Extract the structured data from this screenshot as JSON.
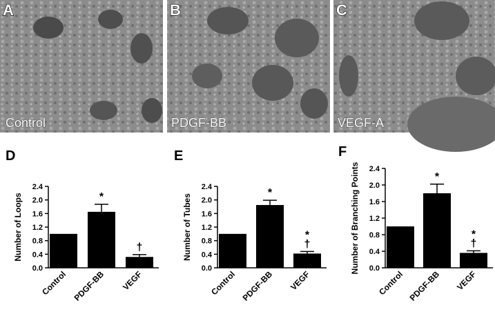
{
  "panels": [
    {
      "label": "A",
      "caption": "Control"
    },
    {
      "label": "B",
      "caption": "PDGF-BB"
    },
    {
      "label": "C",
      "caption": "VEGF-A"
    }
  ],
  "chart_data": [
    {
      "type": "bar",
      "label": "D",
      "y_label": "Number of Loops",
      "categories": [
        "Control",
        "PDGF-BB",
        "VEGF"
      ],
      "values": [
        1.0,
        1.65,
        0.32
      ],
      "errors": [
        0,
        0.22,
        0.07
      ],
      "annotations": [
        [],
        [
          "*"
        ],
        [
          "†"
        ]
      ],
      "color": "#000000",
      "ylim": [
        0,
        2.4
      ],
      "yticks": [
        {
          "value": 0,
          "label": "0.0"
        },
        0.4,
        0.8,
        1.2,
        1.6,
        {
          "value": 2,
          "label": "2.0"
        },
        2.4
      ]
    },
    {
      "type": "bar",
      "label": "E",
      "y_label": "Number of Tubes",
      "categories": [
        "Control",
        "PDGF-BB",
        "VEGF"
      ],
      "values": [
        1.0,
        1.85,
        0.42
      ],
      "errors": [
        0,
        0.14,
        0.06
      ],
      "annotations": [
        [],
        [
          "*"
        ],
        [
          "*",
          "†"
        ]
      ],
      "color": "#000000",
      "ylim": [
        0,
        2.4
      ],
      "yticks": [
        {
          "value": 0,
          "label": "0.0"
        },
        0.4,
        0.8,
        1.2,
        1.6,
        {
          "value": 2,
          "label": "2.0"
        },
        2.4
      ]
    },
    {
      "type": "bar",
      "label": "F",
      "y_label": "Number of Branching Points",
      "categories": [
        "Control",
        "PDGF-BB",
        "VEGF"
      ],
      "values": [
        1.0,
        1.8,
        0.36
      ],
      "errors": [
        0,
        0.22,
        0.05
      ],
      "annotations": [
        [],
        [
          "*"
        ],
        [
          "*",
          "†"
        ]
      ],
      "color": "#000000",
      "ylim": [
        0,
        2.4
      ],
      "yticks": [
        {
          "value": 0,
          "label": "0.0"
        },
        0.4,
        0.8,
        1.2,
        1.6,
        {
          "value": 2,
          "label": "2.0"
        },
        2.4
      ]
    }
  ]
}
